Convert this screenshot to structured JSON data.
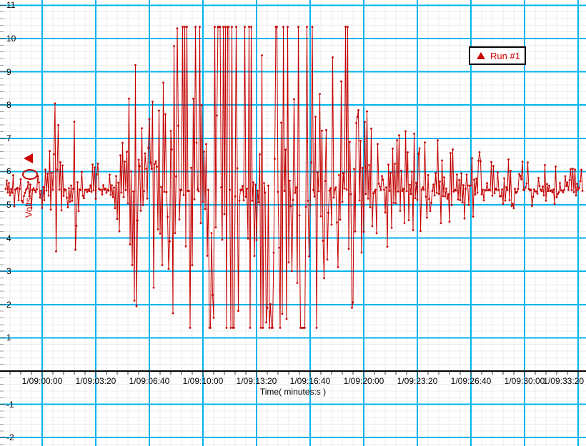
{
  "legend": {
    "label": "Run #1"
  },
  "chart_data": {
    "type": "line",
    "title": "",
    "xlabel": "Time( minutes:s )",
    "ylabel": "Volts",
    "series_name": "Run #1",
    "series_color": "#c40000",
    "legend_color": "#cc0000",
    "ylim": [
      -2.25,
      11.15
    ],
    "y_major_ticks": [
      11,
      10,
      9,
      8,
      7,
      6,
      5,
      4,
      3,
      2,
      1,
      -1,
      -2
    ],
    "x_tick_seconds": [
      0,
      200,
      400,
      600,
      800,
      1000,
      1200,
      1400,
      1600,
      1800,
      2000
    ],
    "x_tick_labels": [
      "1/09:00:00",
      "1/09:03:20",
      "1/09:06:40",
      "1/09:10:00",
      "1/09:13:20",
      "1/09:16:40",
      "1/09:20:00",
      "1/09:23:20",
      "1/09:26:40",
      "1/09:30:00",
      "1/09:33:20"
    ],
    "grid": {
      "major_color": "#00b4ec",
      "minor_color": "#ececec",
      "minor_y_step": 0.2,
      "minor_x_step_s": 40,
      "axis_color": "#000000"
    },
    "axis_marker_value": 6.39,
    "baseline": 5.45,
    "clip_rails": [
      1.3,
      10.35
    ],
    "t_range_s": [
      -136,
      2016
    ],
    "sample_interval_s": 4,
    "envelope": [
      [
        -136,
        4.95,
        6.05
      ],
      [
        -20,
        4.9,
        6.1
      ],
      [
        20,
        4.6,
        6.5
      ],
      [
        48,
        3.6,
        8.05
      ],
      [
        80,
        4.5,
        6.6
      ],
      [
        120,
        3.65,
        7.5
      ],
      [
        140,
        4.8,
        6.45
      ],
      [
        250,
        4.85,
        6.35
      ],
      [
        300,
        4.0,
        7.2
      ],
      [
        348,
        1.95,
        9.2
      ],
      [
        400,
        2.6,
        8.3
      ],
      [
        470,
        2.2,
        8.8
      ],
      [
        505,
        1.3,
        10.35
      ],
      [
        1035,
        1.3,
        10.35
      ],
      [
        1062,
        3.4,
        7.6
      ],
      [
        1095,
        1.45,
        10.35
      ],
      [
        1145,
        1.45,
        10.35
      ],
      [
        1185,
        3.1,
        8.0
      ],
      [
        1260,
        3.6,
        7.5
      ],
      [
        1360,
        4.1,
        7.2
      ],
      [
        1450,
        4.3,
        7.0
      ],
      [
        1560,
        4.55,
        6.75
      ],
      [
        1710,
        4.85,
        6.4
      ],
      [
        1870,
        5.0,
        6.2
      ],
      [
        2016,
        5.1,
        6.05
      ]
    ],
    "notable_points": [
      [
        48,
        8.05
      ],
      [
        52,
        3.6
      ],
      [
        120,
        7.5
      ],
      [
        124,
        3.65
      ],
      [
        348,
        9.2
      ],
      [
        352,
        1.95
      ]
    ],
    "annotation_ellipse": {
      "t_center_s": -45,
      "v_center": 5.91,
      "t_radius_s": 29,
      "v_radius": 0.16
    }
  }
}
